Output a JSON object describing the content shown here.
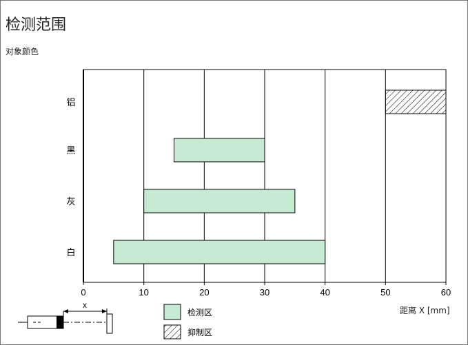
{
  "title": "检测范围",
  "subtitle": "对象颜色",
  "diagram_label": "x",
  "legend": {
    "detect": "检测区",
    "suppress": "抑制区"
  },
  "colors": {
    "detect_fill": "#c6ebd2",
    "grid": "#000000"
  },
  "chart_data": {
    "type": "bar",
    "orientation": "horizontal",
    "categories": [
      "铝",
      "黑",
      "灰",
      "白"
    ],
    "series": [
      {
        "name": "检测区",
        "ranges": [
          null,
          [
            15,
            30
          ],
          [
            10,
            35
          ],
          [
            5,
            40
          ]
        ]
      },
      {
        "name": "抑制区",
        "ranges": [
          [
            50,
            60
          ],
          null,
          null,
          null
        ]
      }
    ],
    "xlabel": "距离 X [mm]",
    "xlim": [
      0,
      60
    ],
    "xticks": [
      0,
      10,
      20,
      30,
      40,
      50,
      60
    ],
    "grid": true
  }
}
